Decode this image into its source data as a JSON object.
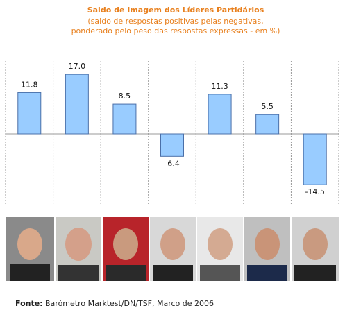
{
  "chart_data": {
    "type": "bar",
    "title": "Saldo de Imagem dos Líderes Partidários",
    "subtitle": [
      "(saldo de respostas positivas pelas negativas,",
      "ponderado pelo peso das respostas expressas - em %)"
    ],
    "categories": [
      null,
      null,
      null,
      null,
      null,
      null,
      null
    ],
    "values": [
      11.8,
      17.0,
      8.5,
      -6.4,
      11.3,
      5.5,
      -14.5
    ],
    "value_labels": [
      "11.8",
      "17.0",
      "8.5",
      "-6.4",
      "11.3",
      "5.5",
      "-14.5"
    ],
    "color": "#99ccff",
    "ylim": [
      -20,
      20
    ],
    "source": {
      "label": "Fonte:",
      "text": "Barómetro Marktest/DN/TSF, Março de 2006"
    }
  }
}
